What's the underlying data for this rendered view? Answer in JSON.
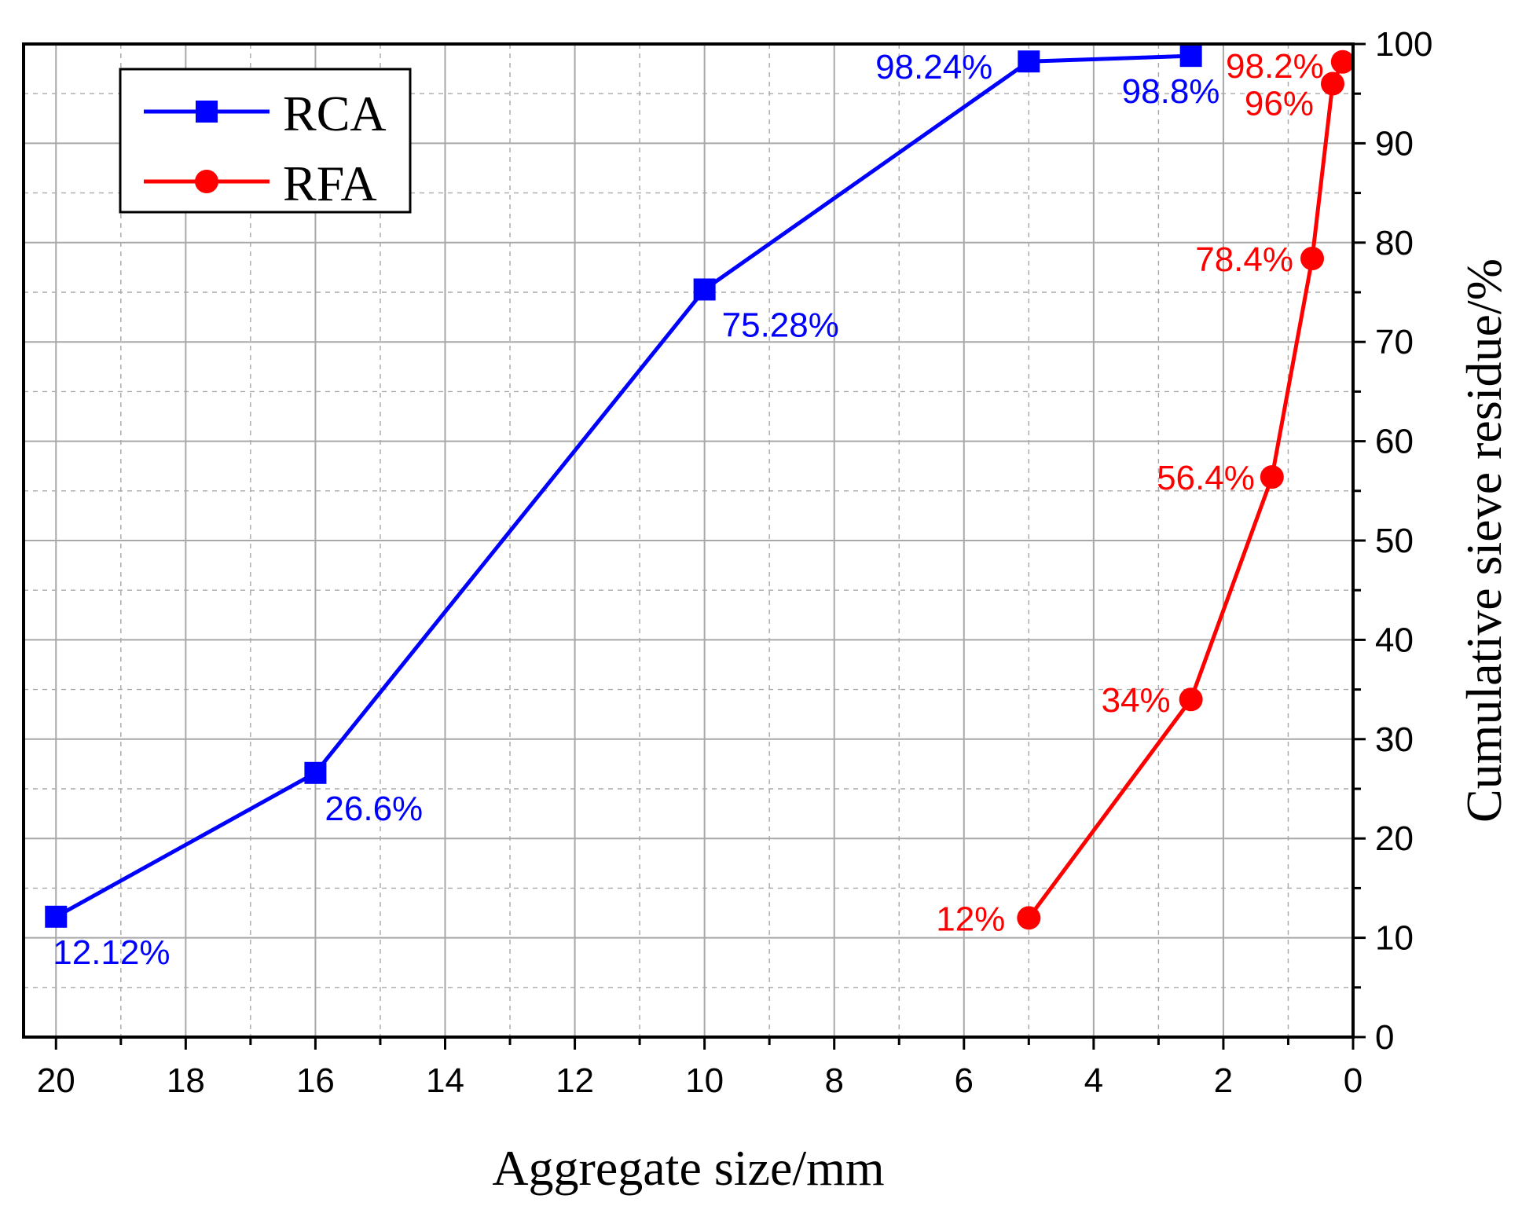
{
  "chart_data": {
    "type": "line",
    "xlabel": "Aggregate  size/mm",
    "ylabel": "Cumulative  sieve  residue/%",
    "xlim": [
      20.5,
      0
    ],
    "ylim": [
      0,
      100
    ],
    "x_ticks": [
      20,
      18,
      16,
      14,
      12,
      10,
      8,
      6,
      4,
      2,
      0
    ],
    "y_ticks": [
      0,
      10,
      20,
      30,
      40,
      50,
      60,
      70,
      80,
      90,
      100
    ],
    "y_axis_side": "right",
    "grid": true,
    "legend_position": "top-left",
    "series": [
      {
        "name": "RCA",
        "color": "#0000ff",
        "marker": "square",
        "x": [
          20,
          16,
          10,
          5,
          2.5
        ],
        "y": [
          12.12,
          26.6,
          75.28,
          98.24,
          98.8
        ],
        "labels": [
          "12.12%",
          "26.6%",
          "75.28%",
          "98.24%",
          "98.8%"
        ]
      },
      {
        "name": "RFA",
        "color": "#ff0000",
        "marker": "circle",
        "x": [
          5,
          2.5,
          1.25,
          0.63,
          0.315,
          0.16
        ],
        "y": [
          12,
          34,
          56.4,
          78.4,
          96,
          98.2
        ],
        "labels": [
          "12%",
          "34%",
          "56.4%",
          "78.4%",
          "96%",
          "98.2%"
        ]
      }
    ]
  }
}
